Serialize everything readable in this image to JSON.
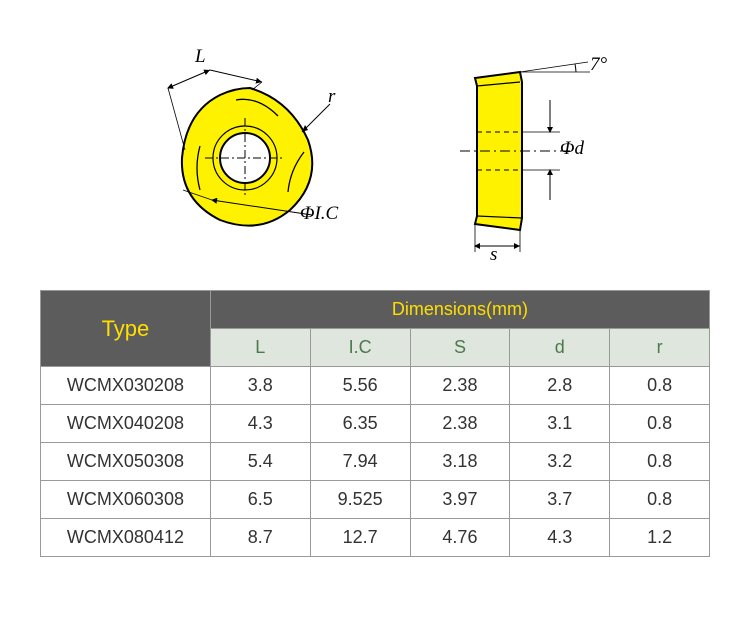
{
  "diagram": {
    "labels": {
      "L": "L",
      "r": "r",
      "IC": "ΦI.C",
      "angle": "7°",
      "d": "Φd",
      "s": "s"
    },
    "colors": {
      "fill": "#fff200",
      "stroke": "#000000",
      "dimline": "#000000"
    }
  },
  "table": {
    "header": {
      "type": "Type",
      "dims": "Dimensions(mm)",
      "cols": [
        "L",
        "I.C",
        "S",
        "d",
        "r"
      ]
    },
    "header_colors": {
      "primary_bg": "#5c5c5c",
      "primary_fg": "#ffde00",
      "sub_bg": "#dfe6de",
      "sub_fg": "#4a7a4a"
    },
    "rows": [
      {
        "type": "WCMX030208",
        "L": "3.8",
        "IC": "5.56",
        "S": "2.38",
        "d": "2.8",
        "r": "0.8"
      },
      {
        "type": "WCMX040208",
        "L": "4.3",
        "IC": "6.35",
        "S": "2.38",
        "d": "3.1",
        "r": "0.8"
      },
      {
        "type": "WCMX050308",
        "L": "5.4",
        "IC": "7.94",
        "S": "3.18",
        "d": "3.2",
        "r": "0.8"
      },
      {
        "type": "WCMX060308",
        "L": "6.5",
        "IC": "9.525",
        "S": "3.97",
        "d": "3.7",
        "r": "0.8"
      },
      {
        "type": "WCMX080412",
        "L": "8.7",
        "IC": "12.7",
        "S": "4.76",
        "d": "4.3",
        "r": "1.2"
      }
    ]
  }
}
